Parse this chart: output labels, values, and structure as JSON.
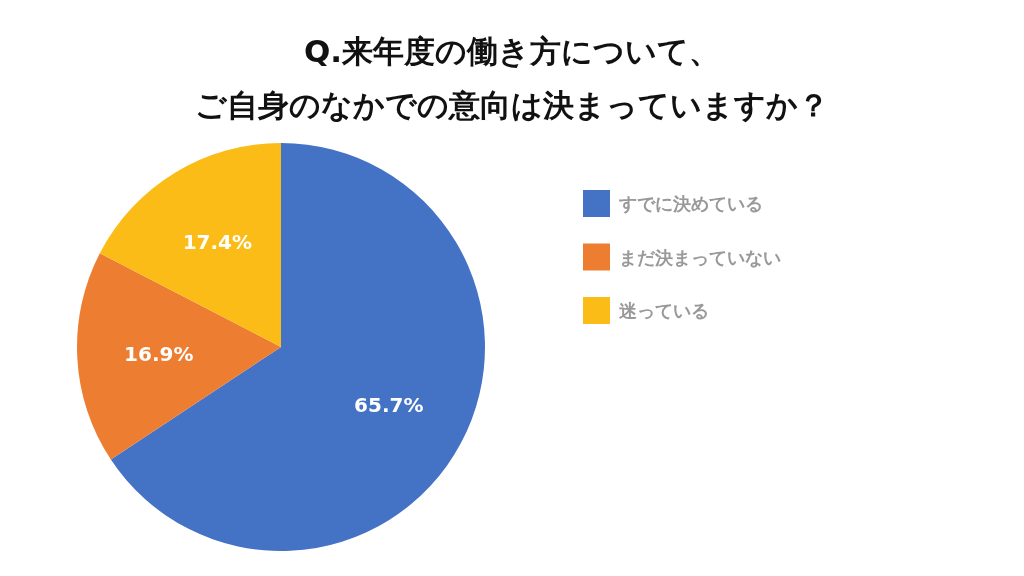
{
  "chart_data": {
    "type": "pie",
    "title": "Q.来年度の働き方について、",
    "subtitle": "ご自身のなかでの意向は決まっていますか？",
    "categories": [
      "すでに決めている",
      "まだ決まっていない",
      "迷っている"
    ],
    "values": [
      65.7,
      16.9,
      17.4
    ],
    "colors": [
      "#4472c4",
      "#ed7d31",
      "#fbbc18"
    ],
    "value_labels": [
      "65.7%",
      "16.9%",
      "17.4%"
    ],
    "legend": "right"
  }
}
